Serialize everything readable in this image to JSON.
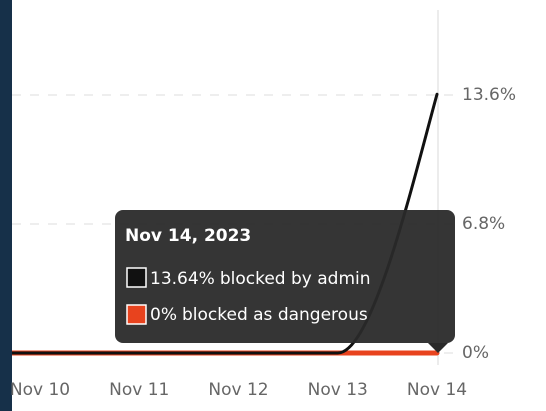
{
  "chart_data": {
    "type": "line",
    "categories": [
      null,
      "Nov 10",
      "Nov 11",
      "Nov 12",
      "Nov 13",
      "Nov 14"
    ],
    "series": [
      {
        "name": "blocked by admin",
        "color": "#111111",
        "values": [
          0,
          0,
          0,
          0,
          0,
          13.64
        ],
        "value_labels": [
          null,
          null,
          null,
          null,
          null,
          "13.64%"
        ]
      },
      {
        "name": "blocked as dangerous",
        "color": "#e8431e",
        "values": [
          0,
          0,
          0,
          0,
          0,
          0
        ],
        "value_labels": [
          null,
          null,
          null,
          null,
          null,
          "0%"
        ]
      }
    ],
    "ylim": [
      0,
      13.6
    ],
    "yticks": [
      {
        "value": 0,
        "label": "0%"
      },
      {
        "value": 6.8,
        "label": "6.8%"
      },
      {
        "value": 13.6,
        "label": "13.6%"
      }
    ],
    "grid": true,
    "tooltip_title": "Nov 14, 2023"
  }
}
